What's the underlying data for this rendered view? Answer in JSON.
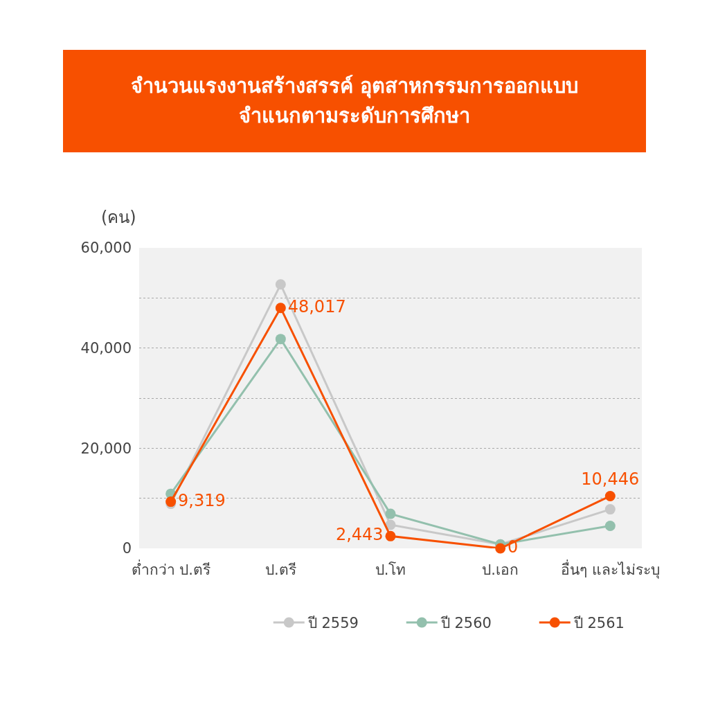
{
  "chart_data": {
    "type": "line",
    "title": "จำนวนแรงงานสร้างสรรค์ อุตสาหกรรมการออกแบบ\nจำแนกตามระดับการศึกษา",
    "ylabel": "(คน)",
    "categories": [
      "ต่ำกว่า ป.ตรี",
      "ป.ตรี",
      "ป.โท",
      "ป.เอก",
      "อื่นๆ และไม่ระบุ"
    ],
    "series": [
      {
        "name": "ปี 2559",
        "color": "#c8c8c8",
        "values": [
          8900,
          52700,
          4700,
          800,
          7800
        ]
      },
      {
        "name": "ปี 2560",
        "color": "#93c0ad",
        "values": [
          10900,
          41800,
          6900,
          800,
          4500
        ]
      },
      {
        "name": "ปี 2561",
        "color": "#f75000",
        "values": [
          9319,
          48017,
          2443,
          0,
          10446
        ],
        "value_labels": [
          "9,319",
          "48,017",
          "2,443",
          "0",
          "10,446"
        ]
      }
    ],
    "ylim": [
      0,
      60000
    ],
    "yticks": [
      0,
      {
        "value": 10000,
        "label": null
      },
      {
        "value": 20000,
        "label": "20,000"
      },
      {
        "value": 30000,
        "label": null
      },
      {
        "value": 40000,
        "label": "40,000"
      },
      {
        "value": 50000,
        "label": null
      },
      {
        "value": 60000,
        "label": "60,000"
      }
    ],
    "grid": "y",
    "legend": "bottom",
    "marker": "circle",
    "line_style": "solid"
  }
}
